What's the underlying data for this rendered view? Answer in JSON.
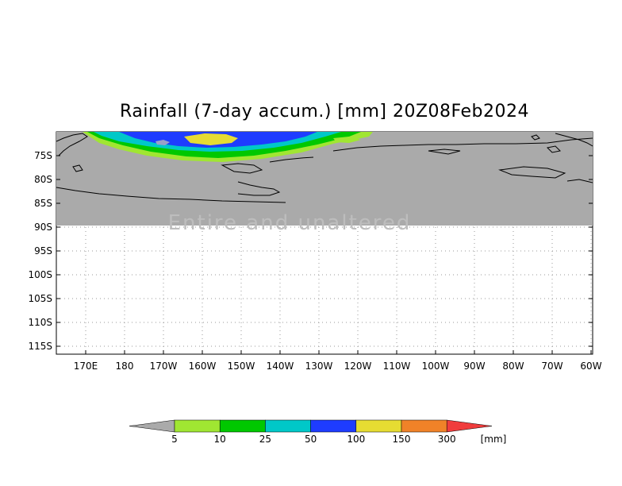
{
  "title": "Rainfall (7-day accum.) [mm] 20Z08Feb2024",
  "map": {
    "y_labels": [
      "75S",
      "80S",
      "85S",
      "90S",
      "95S",
      "100S",
      "105S",
      "110S",
      "115S"
    ],
    "x_labels": [
      "170E",
      "180",
      "170W",
      "160W",
      "150W",
      "140W",
      "130W",
      "120W",
      "110W",
      "100W",
      "90W",
      "80W",
      "70W",
      "60W"
    ],
    "background_watermark": "Entire and unaltered",
    "missing_color": "#aaaaaa"
  },
  "legend": {
    "unit": "[mm]",
    "thresholds": [
      "5",
      "10",
      "25",
      "50",
      "100",
      "150",
      "300"
    ],
    "colors": [
      "#aaaaaa",
      "#a0e632",
      "#00c800",
      "#00c8c8",
      "#1e3cff",
      "#e6dc32",
      "#f08228",
      "#f03c3c"
    ]
  }
}
